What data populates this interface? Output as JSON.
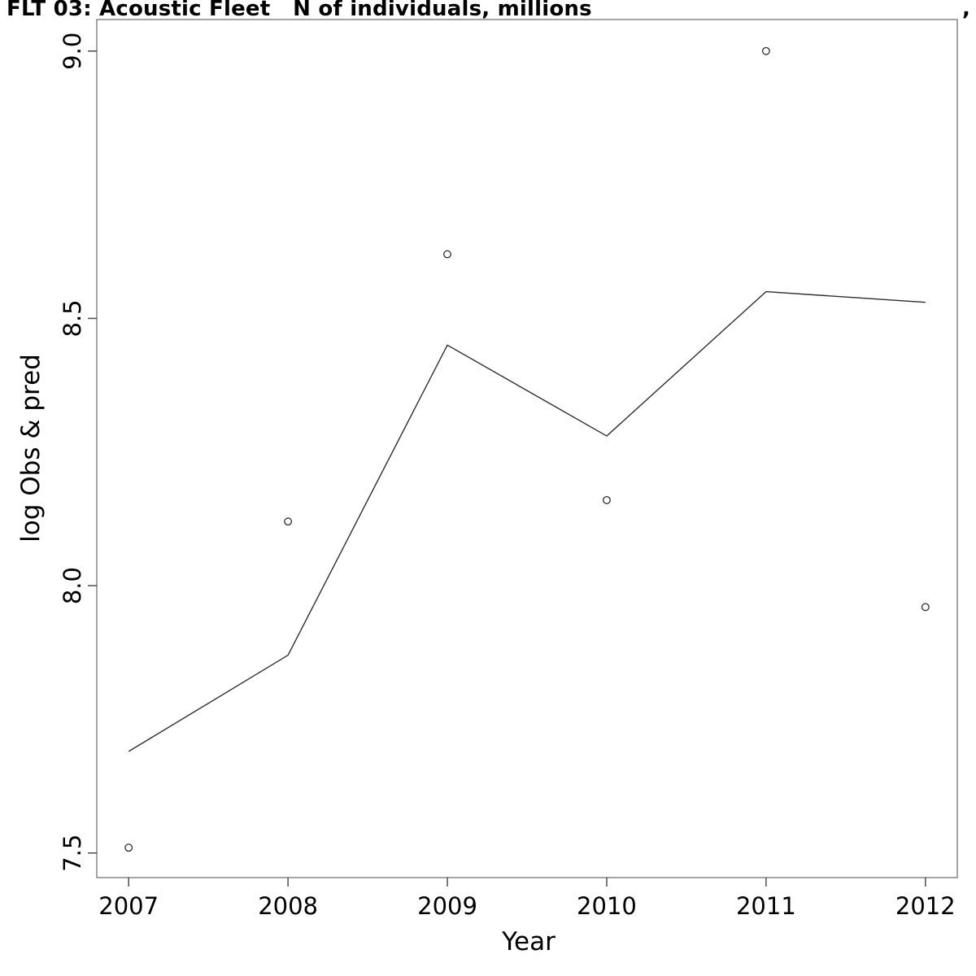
{
  "title": {
    "text": "FLT 03: Acoustic Fleet   N of individuals, millions",
    "overflow_fragment": ", a"
  },
  "axes": {
    "x": {
      "label": "Year",
      "ticks": [
        2007,
        2008,
        2009,
        2010,
        2011,
        2012
      ],
      "tick_labels": [
        "2007",
        "2008",
        "2009",
        "2010",
        "2011",
        "2012"
      ]
    },
    "y": {
      "label": "log Obs & pred",
      "ticks": [
        7.5,
        8.0,
        8.5,
        9.0
      ],
      "tick_labels": [
        "7.5",
        "8.0",
        "8.5",
        "9.0"
      ]
    }
  },
  "chart_data": {
    "type": "line",
    "title": "FLT 03: Acoustic Fleet   N of individuals, millions",
    "xlabel": "Year",
    "ylabel": "log Obs & pred",
    "x": [
      2007,
      2008,
      2009,
      2010,
      2011,
      2012
    ],
    "series": [
      {
        "name": "observed",
        "marker": "open-circle",
        "draw": "points",
        "values": [
          7.51,
          8.12,
          8.62,
          8.16,
          9.0,
          7.96
        ]
      },
      {
        "name": "predicted",
        "marker": "none",
        "draw": "line",
        "values": [
          7.69,
          7.87,
          8.45,
          8.28,
          8.55,
          8.53
        ]
      }
    ],
    "xlim": [
      2006.8,
      2012.2
    ],
    "ylim": [
      7.454,
      9.059
    ],
    "x_ticks": [
      2007,
      2008,
      2009,
      2010,
      2011,
      2012
    ],
    "y_ticks": [
      7.5,
      8.0,
      8.5,
      9.0
    ],
    "grid": "off",
    "legend": "none"
  },
  "colors": {
    "background": "#ffffff",
    "text": "#000000",
    "box_border": "#858585",
    "tick": "#4d4d4d",
    "prediction_line": "#2e2e2e",
    "observation_point": "#2e2e2e"
  }
}
